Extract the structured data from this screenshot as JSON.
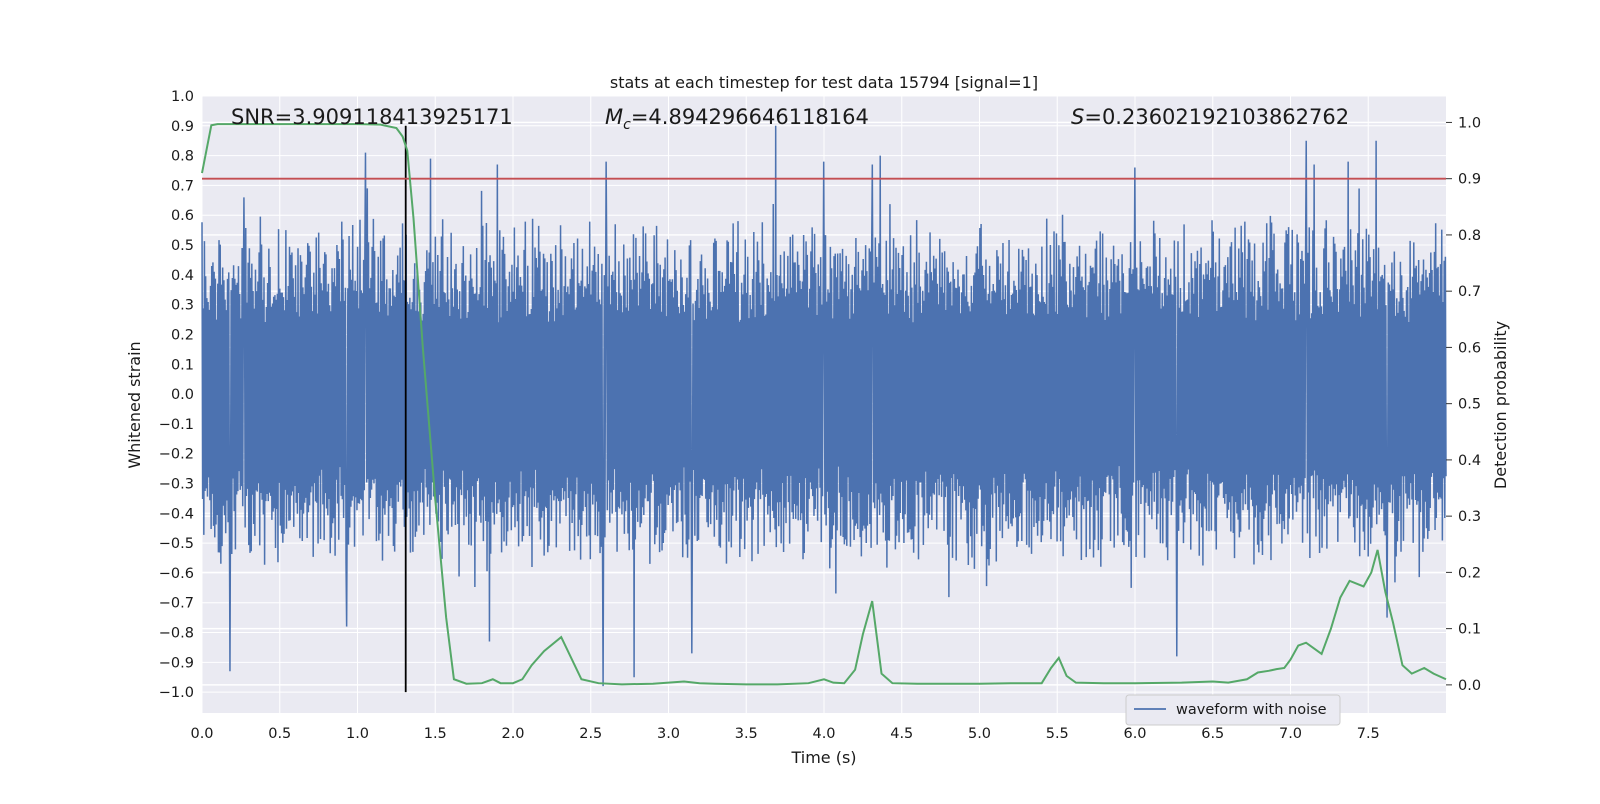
{
  "chart_data": {
    "type": "line",
    "title": "stats at each timestep for test data 15794 [signal=1]",
    "xlabel": "Time (s)",
    "ylabel": "Whitened strain",
    "y2label": "Detection probability",
    "xlim": [
      0.0,
      8.0
    ],
    "ylim": [
      -1.07,
      1.0
    ],
    "y2lim": [
      -0.05,
      1.047
    ],
    "x_ticks": [
      0.0,
      0.5,
      1.0,
      1.5,
      2.0,
      2.5,
      3.0,
      3.5,
      4.0,
      4.5,
      5.0,
      5.5,
      6.0,
      6.5,
      7.0,
      7.5
    ],
    "x_tick_labels": [
      "0.0",
      "0.5",
      "1.0",
      "1.5",
      "2.0",
      "2.5",
      "3.0",
      "3.5",
      "4.0",
      "4.5",
      "5.0",
      "5.5",
      "6.0",
      "6.5",
      "7.0",
      "7.5"
    ],
    "y_ticks": [
      1.0,
      0.9,
      0.8,
      0.7,
      0.6,
      0.5,
      0.4,
      0.3,
      0.2,
      0.1,
      0.0,
      -0.1,
      -0.2,
      -0.3,
      -0.4,
      -0.5,
      -0.6,
      -0.7,
      -0.8,
      -0.9,
      -1.0
    ],
    "y_tick_labels": [
      "1.0",
      "0.9",
      "0.8",
      "0.7",
      "0.6",
      "0.5",
      "0.4",
      "0.3",
      "0.2",
      "0.1",
      "0.0",
      "−0.1",
      "−0.2",
      "−0.3",
      "−0.4",
      "−0.5",
      "−0.6",
      "−0.7",
      "−0.8",
      "−0.9",
      "−1.0"
    ],
    "y2_ticks": [
      1.0,
      0.9,
      0.8,
      0.7,
      0.6,
      0.5,
      0.4,
      0.3,
      0.2,
      0.1,
      0.0
    ],
    "y2_tick_labels": [
      "1.0",
      "0.9",
      "0.8",
      "0.7",
      "0.6",
      "0.5",
      "0.4",
      "0.3",
      "0.2",
      "0.1",
      "0.0"
    ],
    "grid": true,
    "legend": {
      "placement": "lower-right",
      "entries": [
        "waveform with noise"
      ]
    },
    "annotations": {
      "snr": "SNR=3.909118413925171",
      "mc_symbol": "M",
      "mc_subscript": "c",
      "mc_value": "=4.894296646118164",
      "s_symbol": "S",
      "s_value": "=0.23602192103862762"
    },
    "threshold": {
      "axis": "right",
      "value": 0.9,
      "color": "#c44e52"
    },
    "marker_line": {
      "x": 1.31,
      "y_from": -1.0,
      "y_to": 0.9,
      "color": "#000000"
    },
    "series": [
      {
        "name": "waveform with noise",
        "axis": "left",
        "color": "#4c72b0",
        "t_range": [
          0.0,
          8.0
        ],
        "samples": 2048,
        "envelope": {
          "core": 0.3,
          "typical_peak": 0.55,
          "max_peak": 0.9,
          "min_peak": -1.0
        },
        "spikes": [
          {
            "x": 0.18,
            "y": -0.93
          },
          {
            "x": 0.27,
            "y": 0.66
          },
          {
            "x": 0.93,
            "y": -0.78
          },
          {
            "x": 1.05,
            "y": 0.81
          },
          {
            "x": 1.47,
            "y": 0.79
          },
          {
            "x": 1.85,
            "y": -0.83
          },
          {
            "x": 1.9,
            "y": 0.77
          },
          {
            "x": 2.58,
            "y": -0.98
          },
          {
            "x": 2.6,
            "y": 0.78
          },
          {
            "x": 2.78,
            "y": -0.95
          },
          {
            "x": 3.15,
            "y": -0.87
          },
          {
            "x": 3.69,
            "y": 0.9
          },
          {
            "x": 4.0,
            "y": 0.78
          },
          {
            "x": 4.31,
            "y": 0.77
          },
          {
            "x": 4.36,
            "y": 0.8
          },
          {
            "x": 6.0,
            "y": 0.76
          },
          {
            "x": 6.27,
            "y": -0.88
          },
          {
            "x": 7.1,
            "y": 0.85
          },
          {
            "x": 7.15,
            "y": 0.77
          },
          {
            "x": 7.37,
            "y": 0.78
          },
          {
            "x": 7.55,
            "y": 0.85
          },
          {
            "x": 7.62,
            "y": -0.75
          }
        ]
      },
      {
        "name": "",
        "axis": "right",
        "color": "#55a868",
        "x": [
          0.0,
          0.06,
          0.1,
          0.2,
          0.4,
          0.6,
          0.8,
          1.0,
          1.15,
          1.25,
          1.29,
          1.32,
          1.36,
          1.42,
          1.5,
          1.57,
          1.62,
          1.7,
          1.8,
          1.87,
          1.92,
          2.0,
          2.06,
          2.12,
          2.2,
          2.31,
          2.44,
          2.55,
          2.7,
          2.9,
          3.1,
          3.2,
          3.3,
          3.5,
          3.7,
          3.9,
          4.0,
          4.06,
          4.13,
          4.2,
          4.25,
          4.31,
          4.37,
          4.44,
          4.6,
          4.8,
          5.0,
          5.2,
          5.4,
          5.46,
          5.51,
          5.56,
          5.62,
          5.8,
          6.0,
          6.3,
          6.5,
          6.6,
          6.72,
          6.79,
          6.86,
          6.91,
          6.96,
          7.0,
          7.05,
          7.1,
          7.15,
          7.2,
          7.26,
          7.32,
          7.38,
          7.47,
          7.52,
          7.56,
          7.61,
          7.66,
          7.72,
          7.78,
          7.86,
          7.92,
          8.0
        ],
        "y": [
          0.91,
          0.995,
          0.997,
          0.997,
          0.997,
          0.997,
          0.997,
          0.997,
          0.996,
          0.99,
          0.975,
          0.95,
          0.83,
          0.6,
          0.33,
          0.12,
          0.01,
          0.002,
          0.003,
          0.01,
          0.003,
          0.003,
          0.01,
          0.035,
          0.06,
          0.085,
          0.01,
          0.003,
          0.001,
          0.002,
          0.006,
          0.003,
          0.002,
          0.001,
          0.001,
          0.003,
          0.01,
          0.004,
          0.003,
          0.027,
          0.09,
          0.149,
          0.02,
          0.003,
          0.002,
          0.002,
          0.002,
          0.003,
          0.003,
          0.03,
          0.048,
          0.016,
          0.004,
          0.003,
          0.003,
          0.004,
          0.006,
          0.004,
          0.01,
          0.022,
          0.025,
          0.028,
          0.03,
          0.045,
          0.07,
          0.075,
          0.065,
          0.055,
          0.1,
          0.155,
          0.185,
          0.175,
          0.2,
          0.24,
          0.165,
          0.11,
          0.035,
          0.02,
          0.03,
          0.02,
          0.01
        ]
      }
    ]
  }
}
